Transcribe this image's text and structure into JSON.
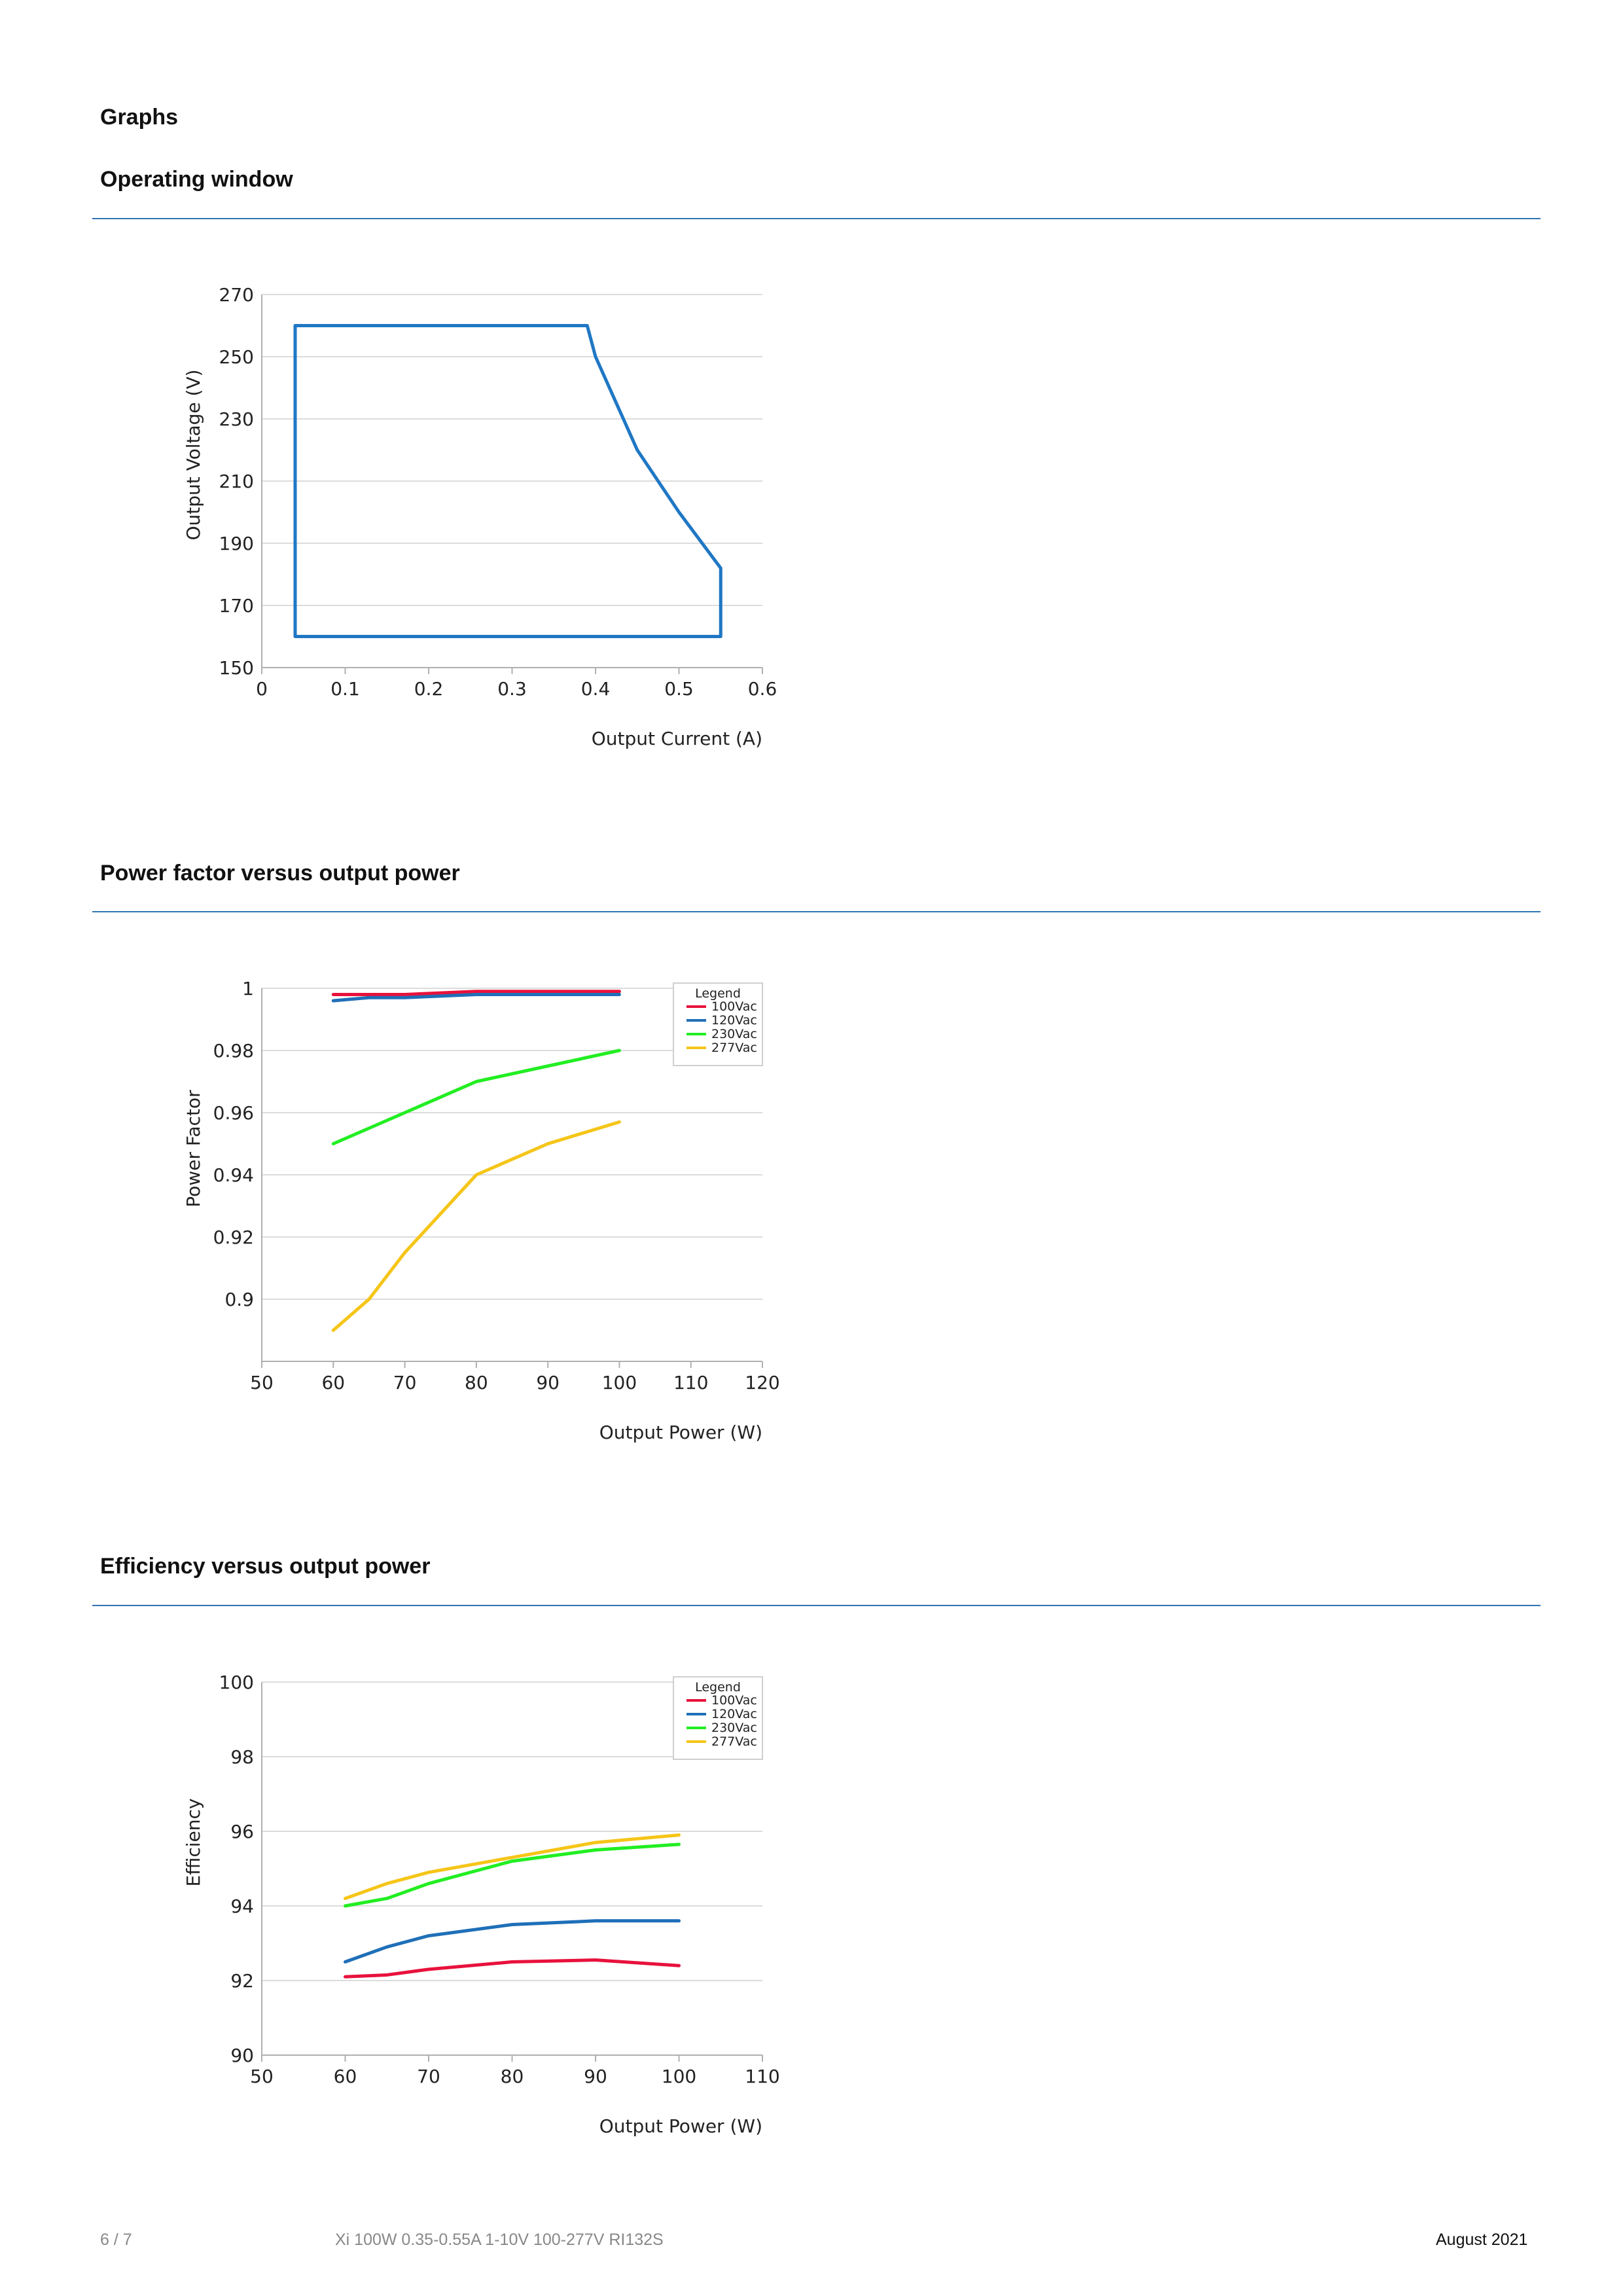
{
  "page": {
    "heading": "Graphs"
  },
  "sections": [
    {
      "title": "Operating window"
    },
    {
      "title": "Power factor versus output power"
    },
    {
      "title": "Efficiency versus output power"
    }
  ],
  "charts": {
    "operating_window": {
      "type": "line",
      "xlabel": "Output Current (A)",
      "ylabel": "Output Voltage (V)",
      "xlim": [
        0,
        0.6
      ],
      "ylim": [
        150,
        270
      ],
      "x_ticks": [
        0,
        0.1,
        0.2,
        0.3,
        0.4,
        0.5,
        0.6
      ],
      "y_ticks": [
        150,
        170,
        190,
        210,
        230,
        250,
        270
      ],
      "grid": true,
      "color": "#1f77c4",
      "series": [
        {
          "x": [
            0.04,
            0.39,
            0.4,
            0.45,
            0.5,
            0.55,
            0.55,
            0.04,
            0.04
          ],
          "y": [
            260,
            260,
            250,
            220,
            200,
            182,
            160,
            160,
            260
          ]
        }
      ]
    },
    "power_factor": {
      "type": "line",
      "xlabel": "Output Power (W)",
      "ylabel": "Power Factor",
      "xlim": [
        50,
        120
      ],
      "ylim": [
        0.88,
        1
      ],
      "x_ticks": [
        50,
        60,
        70,
        80,
        90,
        100,
        110,
        120
      ],
      "y_ticks": [
        0.9,
        0.92,
        0.94,
        0.96,
        0.98,
        1
      ],
      "grid": true,
      "legend_title": "Legend",
      "legend_position": "top-right",
      "series": [
        {
          "name": "100Vac",
          "color": "#e8123c",
          "x": [
            60,
            70,
            80,
            90,
            100
          ],
          "y": [
            0.998,
            0.998,
            0.999,
            0.999,
            0.999
          ]
        },
        {
          "name": "120Vac",
          "color": "#1f6fb8",
          "x": [
            60,
            65,
            70,
            80,
            90,
            100
          ],
          "y": [
            0.996,
            0.997,
            0.997,
            0.998,
            0.998,
            0.998
          ]
        },
        {
          "name": "230Vac",
          "color": "#22ee22",
          "x": [
            60,
            70,
            80,
            90,
            100
          ],
          "y": [
            0.95,
            0.96,
            0.97,
            0.975,
            0.98
          ]
        },
        {
          "name": "277Vac",
          "color": "#f5c518",
          "x": [
            60,
            65,
            70,
            80,
            90,
            100
          ],
          "y": [
            0.89,
            0.9,
            0.915,
            0.94,
            0.95,
            0.957
          ]
        }
      ]
    },
    "efficiency": {
      "type": "line",
      "xlabel": "Output Power (W)",
      "ylabel": "Efficiency",
      "xlim": [
        50,
        110
      ],
      "ylim": [
        90,
        100
      ],
      "x_ticks": [
        50,
        60,
        70,
        80,
        90,
        100,
        110
      ],
      "y_ticks": [
        90,
        92,
        94,
        96,
        98,
        100
      ],
      "grid": true,
      "legend_title": "Legend",
      "legend_position": "top-right",
      "series": [
        {
          "name": "100Vac",
          "color": "#e8123c",
          "x": [
            60,
            65,
            70,
            80,
            90,
            100
          ],
          "y": [
            92.1,
            92.15,
            92.3,
            92.5,
            92.55,
            92.4
          ]
        },
        {
          "name": "120Vac",
          "color": "#1f6fb8",
          "x": [
            60,
            65,
            70,
            80,
            90,
            100
          ],
          "y": [
            92.5,
            92.9,
            93.2,
            93.5,
            93.6,
            93.6
          ]
        },
        {
          "name": "230Vac",
          "color": "#22ee22",
          "x": [
            60,
            65,
            70,
            80,
            90,
            100
          ],
          "y": [
            94.0,
            94.2,
            94.6,
            95.2,
            95.5,
            95.65
          ]
        },
        {
          "name": "277Vac",
          "color": "#f5c518",
          "x": [
            60,
            65,
            70,
            80,
            90,
            100
          ],
          "y": [
            94.2,
            94.6,
            94.9,
            95.3,
            95.7,
            95.9
          ]
        }
      ]
    }
  },
  "footer": {
    "page_number": "6 / 7",
    "product": "Xi 100W 0.35-0.55A 1-10V 100-277V RI132S",
    "date": "August 2021"
  }
}
